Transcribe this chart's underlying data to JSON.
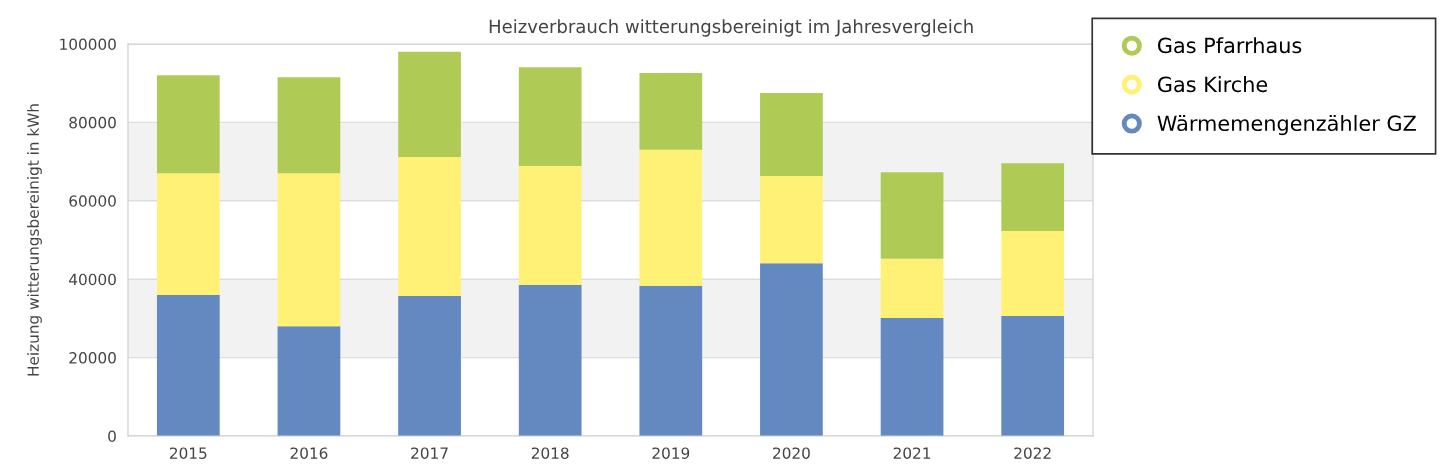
{
  "chart_data": {
    "type": "bar",
    "stacked": true,
    "title": "Heizverbrauch witterungsbereinigt im Jahresvergleich",
    "ylabel": "Heizung witterungsbereinigt in kWh",
    "categories": [
      "2015",
      "2016",
      "2017",
      "2018",
      "2019",
      "2020",
      "2021",
      "2022"
    ],
    "series": [
      {
        "name": "Wärmemengenzähler GZ",
        "color": "#6389c0",
        "values": [
          36000,
          28000,
          35700,
          38500,
          38300,
          44100,
          30100,
          30600
        ]
      },
      {
        "name": "Gas Kirche",
        "color": "#fff176",
        "values": [
          31000,
          39000,
          35500,
          30400,
          34700,
          22200,
          15100,
          21700
        ]
      },
      {
        "name": "Gas Pfarrhaus",
        "color": "#b0cb55",
        "values": [
          25000,
          24500,
          26800,
          25200,
          19600,
          21200,
          22100,
          17300
        ]
      }
    ],
    "ylim": [
      0,
      100000
    ],
    "yticks": [
      0,
      20000,
      40000,
      60000,
      80000,
      100000
    ],
    "bands": [
      {
        "axis": "y",
        "from": 20000,
        "to": 40000,
        "color": "#f2f2f2"
      },
      {
        "axis": "y",
        "from": 60000,
        "to": 80000,
        "color": "#f2f2f2"
      }
    ],
    "grid": "y",
    "legend": "top right"
  }
}
